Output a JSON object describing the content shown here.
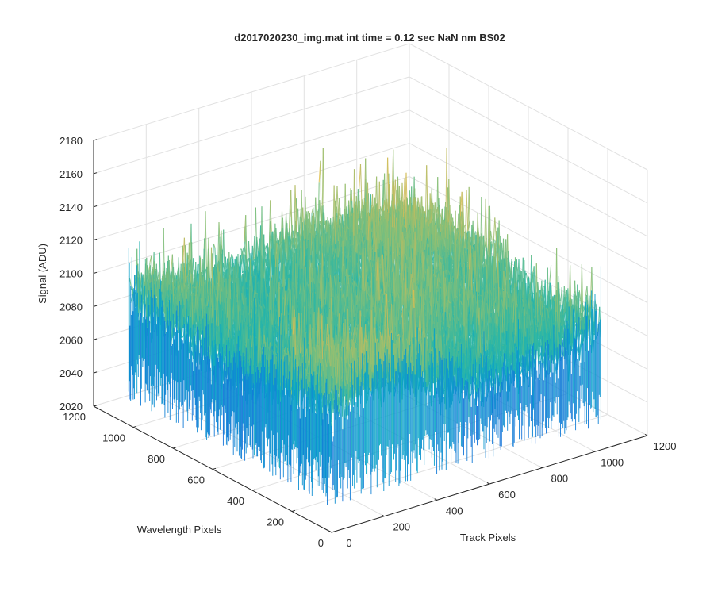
{
  "chart_data": {
    "type": "surface3d",
    "title": "d2017020230_img.mat int time = 0.12 sec  NaN nm BS02",
    "xlabel": "Track Pixels",
    "ylabel": "Wavelength Pixels",
    "zlabel": "Signal (ADU)",
    "xlim": [
      0,
      1200
    ],
    "ylim": [
      0,
      1200
    ],
    "zlim": [
      2020,
      2180
    ],
    "xticks": [
      "0",
      "200",
      "400",
      "600",
      "800",
      "1000",
      "1200"
    ],
    "yticks": [
      "0",
      "200",
      "400",
      "600",
      "800",
      "1000",
      "1200"
    ],
    "zticks": [
      "2020",
      "2040",
      "2060",
      "2080",
      "2100",
      "2120",
      "2140",
      "2160",
      "2180"
    ],
    "data_extent": {
      "x": [
        1,
        1024
      ],
      "y": [
        1,
        1024
      ]
    },
    "signal_mean": 2095,
    "signal_range": [
      2035,
      2165
    ],
    "grid": true,
    "colormap": "parula",
    "colormap_stops": [
      "#352a87",
      "#0f5cdd",
      "#1481d6",
      "#06a4ca",
      "#2eb7a4",
      "#87bf77",
      "#d1bb59",
      "#fec832",
      "#f9fb0e"
    ]
  }
}
